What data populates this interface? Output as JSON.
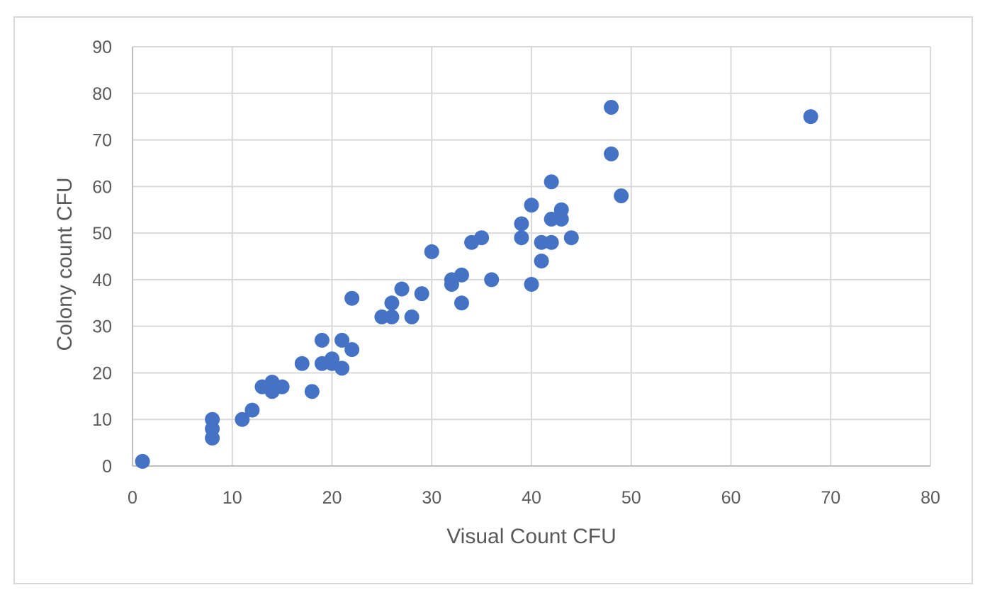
{
  "chart_data": {
    "type": "scatter",
    "title": "",
    "xlabel": "Visual Count CFU",
    "ylabel": "Colony count CFU",
    "xlim": [
      0,
      80
    ],
    "ylim": [
      0,
      90
    ],
    "x_ticks": [
      "0",
      "10",
      "20",
      "30",
      "40",
      "50",
      "60",
      "70",
      "80"
    ],
    "y_ticks": [
      "0",
      "10",
      "20",
      "30",
      "40",
      "50",
      "60",
      "70",
      "80",
      "90"
    ],
    "grid": true,
    "legend": "none",
    "marker_color": "#4472c4",
    "series": [
      {
        "points": [
          [
            1,
            1
          ],
          [
            8,
            10
          ],
          [
            8,
            8
          ],
          [
            8,
            6
          ],
          [
            11,
            10
          ],
          [
            12,
            12
          ],
          [
            13,
            17
          ],
          [
            14,
            18
          ],
          [
            14,
            16
          ],
          [
            15,
            17
          ],
          [
            17,
            22
          ],
          [
            18,
            16
          ],
          [
            19,
            27
          ],
          [
            19,
            22
          ],
          [
            20,
            23
          ],
          [
            20,
            22
          ],
          [
            21,
            27
          ],
          [
            21,
            21
          ],
          [
            22,
            25
          ],
          [
            22,
            36
          ],
          [
            25,
            32
          ],
          [
            26,
            35
          ],
          [
            26,
            32
          ],
          [
            27,
            38
          ],
          [
            28,
            32
          ],
          [
            29,
            37
          ],
          [
            30,
            46
          ],
          [
            32,
            40
          ],
          [
            32,
            39
          ],
          [
            33,
            41
          ],
          [
            33,
            35
          ],
          [
            34,
            48
          ],
          [
            35,
            49
          ],
          [
            36,
            40
          ],
          [
            39,
            52
          ],
          [
            39,
            49
          ],
          [
            40,
            56
          ],
          [
            40,
            39
          ],
          [
            41,
            48
          ],
          [
            41,
            44
          ],
          [
            42,
            61
          ],
          [
            42,
            53
          ],
          [
            42,
            48
          ],
          [
            43,
            55
          ],
          [
            43,
            53
          ],
          [
            44,
            49
          ],
          [
            48,
            77
          ],
          [
            48,
            67
          ],
          [
            49,
            58
          ],
          [
            68,
            75
          ]
        ]
      }
    ]
  }
}
